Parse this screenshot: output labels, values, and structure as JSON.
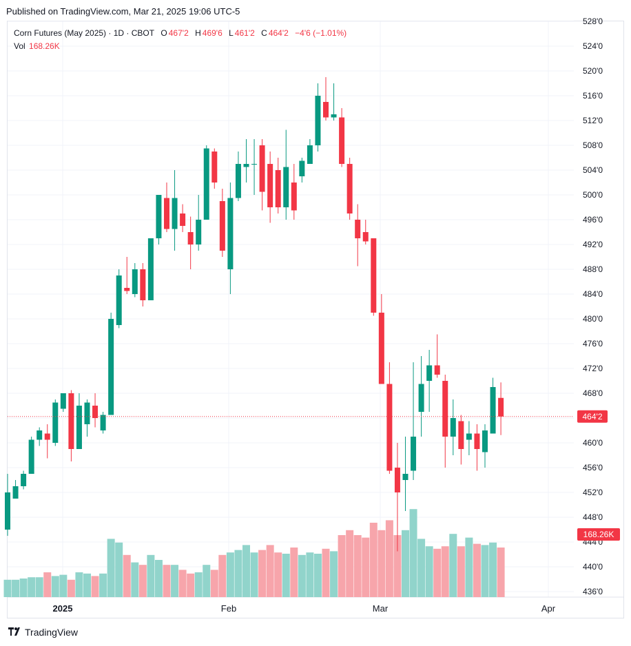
{
  "header": {
    "published": "Published on TradingView.com, Mar 21, 2025 19:06 UTC-5"
  },
  "legend": {
    "symbol": "Corn Futures (May 2025) · 1D · CBOT",
    "open_label": "O",
    "open": "467'2",
    "high_label": "H",
    "high": "469'6",
    "low_label": "L",
    "low": "461'2",
    "close_label": "C",
    "close": "464'2",
    "change": "−4'6 (−1.01%)",
    "vol_label": "Vol",
    "vol": "168.26K"
  },
  "footer": {
    "brand": "TradingView",
    "logo_icon": "tradingview-logo-icon"
  },
  "colors": {
    "up": "#089981",
    "down": "#f23645",
    "up_vol": "#91d4cb",
    "down_vol": "#f7a5ab",
    "grid": "#f0f3fa",
    "axis_text": "#131722"
  },
  "chart_data": {
    "type": "candlestick",
    "title": "Corn Futures (May 2025)",
    "interval": "1D",
    "exchange": "CBOT",
    "ylim": [
      435,
      528
    ],
    "y_ticks": [
      "528'0",
      "524'0",
      "520'0",
      "516'0",
      "512'0",
      "508'0",
      "504'0",
      "500'0",
      "496'0",
      "492'0",
      "488'0",
      "484'0",
      "480'0",
      "476'0",
      "472'0",
      "468'0",
      "464'0",
      "460'0",
      "456'0",
      "452'0",
      "448'0",
      "444'0",
      "440'0",
      "436'0"
    ],
    "x_labels": [
      "2025",
      "Feb",
      "Mar",
      "Apr"
    ],
    "last_price_label": "464'2",
    "last_price": 464.25,
    "volume_label": "168.26K",
    "grid": true,
    "candles": [
      {
        "o": 446,
        "h": 455,
        "l": 445,
        "c": 452
      },
      {
        "o": 451,
        "h": 454,
        "l": 451,
        "c": 453
      },
      {
        "o": 453,
        "h": 455.5,
        "l": 452.5,
        "c": 455
      },
      {
        "o": 455,
        "h": 461,
        "l": 455,
        "c": 460.5
      },
      {
        "o": 460.5,
        "h": 462.5,
        "l": 459.5,
        "c": 462
      },
      {
        "o": 461.5,
        "h": 463,
        "l": 457.5,
        "c": 460.5
      },
      {
        "o": 460,
        "h": 467,
        "l": 459.5,
        "c": 466.5
      },
      {
        "o": 465.5,
        "h": 468,
        "l": 465,
        "c": 468
      },
      {
        "o": 468,
        "h": 468.5,
        "l": 457,
        "c": 459
      },
      {
        "o": 459,
        "h": 468,
        "l": 459,
        "c": 466
      },
      {
        "o": 463,
        "h": 467,
        "l": 461,
        "c": 466.5
      },
      {
        "o": 466,
        "h": 468,
        "l": 462.5,
        "c": 464
      },
      {
        "o": 462,
        "h": 465,
        "l": 461.5,
        "c": 464.5
      },
      {
        "o": 464.5,
        "h": 481,
        "l": 464.5,
        "c": 480
      },
      {
        "o": 479,
        "h": 488,
        "l": 478.5,
        "c": 487
      },
      {
        "o": 485,
        "h": 490,
        "l": 484,
        "c": 484.5
      },
      {
        "o": 484,
        "h": 489,
        "l": 483.5,
        "c": 488
      },
      {
        "o": 488,
        "h": 489,
        "l": 482,
        "c": 483
      },
      {
        "o": 483,
        "h": 493,
        "l": 483,
        "c": 493
      },
      {
        "o": 493,
        "h": 500,
        "l": 492,
        "c": 500
      },
      {
        "o": 499.5,
        "h": 502,
        "l": 494,
        "c": 494.5
      },
      {
        "o": 494.5,
        "h": 504,
        "l": 491,
        "c": 499.5
      },
      {
        "o": 497,
        "h": 498.5,
        "l": 494,
        "c": 495
      },
      {
        "o": 494,
        "h": 496.5,
        "l": 488,
        "c": 492
      },
      {
        "o": 492,
        "h": 500,
        "l": 491,
        "c": 496
      },
      {
        "o": 496,
        "h": 508,
        "l": 496,
        "c": 507.5
      },
      {
        "o": 507,
        "h": 507.5,
        "l": 501,
        "c": 502
      },
      {
        "o": 499,
        "h": 501,
        "l": 490,
        "c": 491
      },
      {
        "o": 488,
        "h": 502,
        "l": 484,
        "c": 499.5
      },
      {
        "o": 499.5,
        "h": 507,
        "l": 499,
        "c": 505
      },
      {
        "o": 504.5,
        "h": 509,
        "l": 502,
        "c": 505
      },
      {
        "o": 505,
        "h": 509,
        "l": 500,
        "c": 505
      },
      {
        "o": 508,
        "h": 509,
        "l": 497.5,
        "c": 500.5
      },
      {
        "o": 505,
        "h": 507,
        "l": 495.5,
        "c": 498
      },
      {
        "o": 504,
        "h": 506,
        "l": 497,
        "c": 498
      },
      {
        "o": 498,
        "h": 510.5,
        "l": 496,
        "c": 504.5
      },
      {
        "o": 502,
        "h": 505,
        "l": 496,
        "c": 497.5
      },
      {
        "o": 503,
        "h": 506,
        "l": 502,
        "c": 505.5
      },
      {
        "o": 505,
        "h": 509,
        "l": 505,
        "c": 508
      },
      {
        "o": 508,
        "h": 518,
        "l": 507,
        "c": 516
      },
      {
        "o": 515,
        "h": 519,
        "l": 512,
        "c": 512.5
      },
      {
        "o": 512.5,
        "h": 518,
        "l": 512,
        "c": 513
      },
      {
        "o": 512.5,
        "h": 514,
        "l": 504.5,
        "c": 505
      },
      {
        "o": 505,
        "h": 506,
        "l": 496,
        "c": 497
      },
      {
        "o": 496,
        "h": 498.5,
        "l": 488.5,
        "c": 493
      },
      {
        "o": 494,
        "h": 496,
        "l": 492,
        "c": 492.5
      },
      {
        "o": 493,
        "h": 493,
        "l": 480.5,
        "c": 481
      },
      {
        "o": 481,
        "h": 484,
        "l": 469.5,
        "c": 469.5
      },
      {
        "o": 469.5,
        "h": 473,
        "l": 455,
        "c": 455.5
      },
      {
        "o": 456,
        "h": 460,
        "l": 442.5,
        "c": 452
      },
      {
        "o": 454,
        "h": 461,
        "l": 449,
        "c": 455
      },
      {
        "o": 455.5,
        "h": 473,
        "l": 454,
        "c": 461
      },
      {
        "o": 465,
        "h": 474,
        "l": 461,
        "c": 469.5
      },
      {
        "o": 470,
        "h": 475,
        "l": 465,
        "c": 472.5
      },
      {
        "o": 472.5,
        "h": 477.5,
        "l": 470.5,
        "c": 471
      },
      {
        "o": 470,
        "h": 471,
        "l": 456,
        "c": 461
      },
      {
        "o": 461,
        "h": 467,
        "l": 458,
        "c": 464
      },
      {
        "o": 463.5,
        "h": 464.5,
        "l": 456.5,
        "c": 459
      },
      {
        "o": 460.5,
        "h": 463.5,
        "l": 458,
        "c": 461.5
      },
      {
        "o": 461.5,
        "h": 463,
        "l": 455.5,
        "c": 459
      },
      {
        "o": 458.5,
        "h": 463,
        "l": 456,
        "c": 462
      },
      {
        "o": 461.5,
        "h": 470.5,
        "l": 461.5,
        "c": 469
      },
      {
        "o": 467.25,
        "h": 469.75,
        "l": 461.25,
        "c": 464.25
      }
    ],
    "volume_scale_note": "relative heights",
    "volumes": [
      14,
      14,
      15,
      16,
      16,
      20,
      17,
      18,
      14,
      20,
      19,
      17,
      19,
      47,
      44,
      34,
      28,
      26,
      34,
      30,
      26,
      26,
      22,
      19,
      20,
      26,
      22,
      34,
      36,
      38,
      42,
      36,
      38,
      42,
      36,
      35,
      40,
      34,
      36,
      35,
      39,
      37,
      50,
      54,
      50,
      48,
      60,
      54,
      62,
      50,
      54,
      71,
      47,
      41,
      39,
      41,
      51,
      41,
      48,
      43,
      42,
      44,
      40
    ]
  }
}
